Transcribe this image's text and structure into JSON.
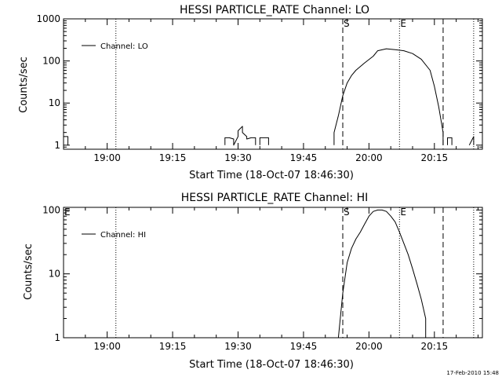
{
  "footer": {
    "timestamp": "17-Feb-2010 15:48"
  },
  "chart_data": [
    {
      "type": "line",
      "title": "HESSI PARTICLE_RATE Channel: LO",
      "xlabel": "Start Time (18-Oct-07 18:46:30)",
      "ylabel": "Counts/sec",
      "y_scale": "log",
      "ylim": [
        0.8,
        1000
      ],
      "xlim": [
        "18:50",
        "20:26"
      ],
      "x_tick_labels": [
        "19:00",
        "19:15",
        "19:30",
        "19:45",
        "20:00",
        "20:15"
      ],
      "y_tick_labels": [
        "1",
        "10",
        "100",
        "1000"
      ],
      "legend": {
        "position": "top-left",
        "entries": [
          "Channel: LO"
        ]
      },
      "grid": false,
      "markers": [
        {
          "time": "19:02",
          "style": "dotted",
          "label": ""
        },
        {
          "time": "19:54",
          "style": "dashed",
          "label": "S"
        },
        {
          "time": "20:07",
          "style": "dotted",
          "label": "E"
        },
        {
          "time": "20:17",
          "style": "dashed",
          "label": ""
        },
        {
          "time": "20:24",
          "style": "dotted",
          "label": ""
        }
      ],
      "series": [
        {
          "name": "Channel: LO",
          "segments": [
            {
              "x": [
                "18:50",
                "18:50",
                "18:51",
                "18:51"
              ],
              "y": [
                1,
                1.6,
                1.6,
                1
              ]
            },
            {
              "x": [
                "19:27",
                "19:27",
                "19:28",
                "19:29",
                "19:29",
                "19:30",
                "19:30",
                "19:31",
                "19:31",
                "19:32",
                "19:32",
                "19:33",
                "19:34",
                "19:34"
              ],
              "y": [
                1,
                1.5,
                1.5,
                1.4,
                1,
                1.6,
                2.2,
                2.8,
                2.0,
                1.6,
                1.4,
                1.5,
                1.5,
                1
              ]
            },
            {
              "x": [
                "19:35",
                "19:35",
                "19:36",
                "19:37",
                "19:37"
              ],
              "y": [
                1,
                1.5,
                1.5,
                1.5,
                1
              ]
            },
            {
              "x": [
                "19:52",
                "19:52",
                "19:53",
                "19:54",
                "19:55",
                "19:56",
                "19:57",
                "19:59",
                "20:01",
                "20:02",
                "20:04",
                "20:06",
                "20:08",
                "20:10",
                "20:12",
                "20:14",
                "20:15",
                "20:16",
                "20:17",
                "20:17"
              ],
              "y": [
                1,
                2,
                5,
                15,
                30,
                45,
                60,
                90,
                130,
                175,
                195,
                185,
                175,
                150,
                110,
                60,
                25,
                8,
                2,
                1
              ]
            },
            {
              "x": [
                "20:18",
                "20:18",
                "20:19",
                "20:19"
              ],
              "y": [
                1,
                1.5,
                1.5,
                1
              ]
            },
            {
              "x": [
                "20:23",
                "20:24",
                "20:24"
              ],
              "y": [
                1,
                1.6,
                1
              ]
            }
          ]
        }
      ]
    },
    {
      "type": "line",
      "title": "HESSI PARTICLE_RATE Channel: HI",
      "xlabel": "Start Time (18-Oct-07 18:46:30)",
      "ylabel": "Counts/sec",
      "y_scale": "log",
      "ylim": [
        1,
        110
      ],
      "xlim": [
        "18:50",
        "20:26"
      ],
      "x_tick_labels": [
        "19:00",
        "19:15",
        "19:30",
        "19:45",
        "20:00",
        "20:15"
      ],
      "y_tick_labels": [
        "1",
        "10",
        "100"
      ],
      "legend": {
        "position": "top-left",
        "entries": [
          "Channel: HI"
        ]
      },
      "grid": false,
      "markers": [
        {
          "time": "18:50",
          "style": "none",
          "label": "E"
        },
        {
          "time": "19:02",
          "style": "dotted",
          "label": ""
        },
        {
          "time": "19:54",
          "style": "dashed",
          "label": "S"
        },
        {
          "time": "20:07",
          "style": "dotted",
          "label": "E"
        },
        {
          "time": "20:17",
          "style": "dashed",
          "label": ""
        },
        {
          "time": "20:24",
          "style": "dotted",
          "label": ""
        }
      ],
      "series": [
        {
          "name": "Channel: HI",
          "segments": [
            {
              "x": [
                "19:53",
                "19:54",
                "19:55",
                "19:56",
                "19:57",
                "19:58",
                "19:59",
                "20:00",
                "20:01",
                "20:02",
                "20:03",
                "20:04",
                "20:05",
                "20:06",
                "20:07",
                "20:08",
                "20:09",
                "20:10",
                "20:11",
                "20:12",
                "20:13",
                "20:13"
              ],
              "y": [
                1,
                5,
                15,
                25,
                35,
                45,
                60,
                80,
                95,
                100,
                100,
                95,
                80,
                65,
                45,
                30,
                20,
                12,
                7,
                4,
                2,
                1
              ]
            }
          ]
        }
      ]
    }
  ]
}
